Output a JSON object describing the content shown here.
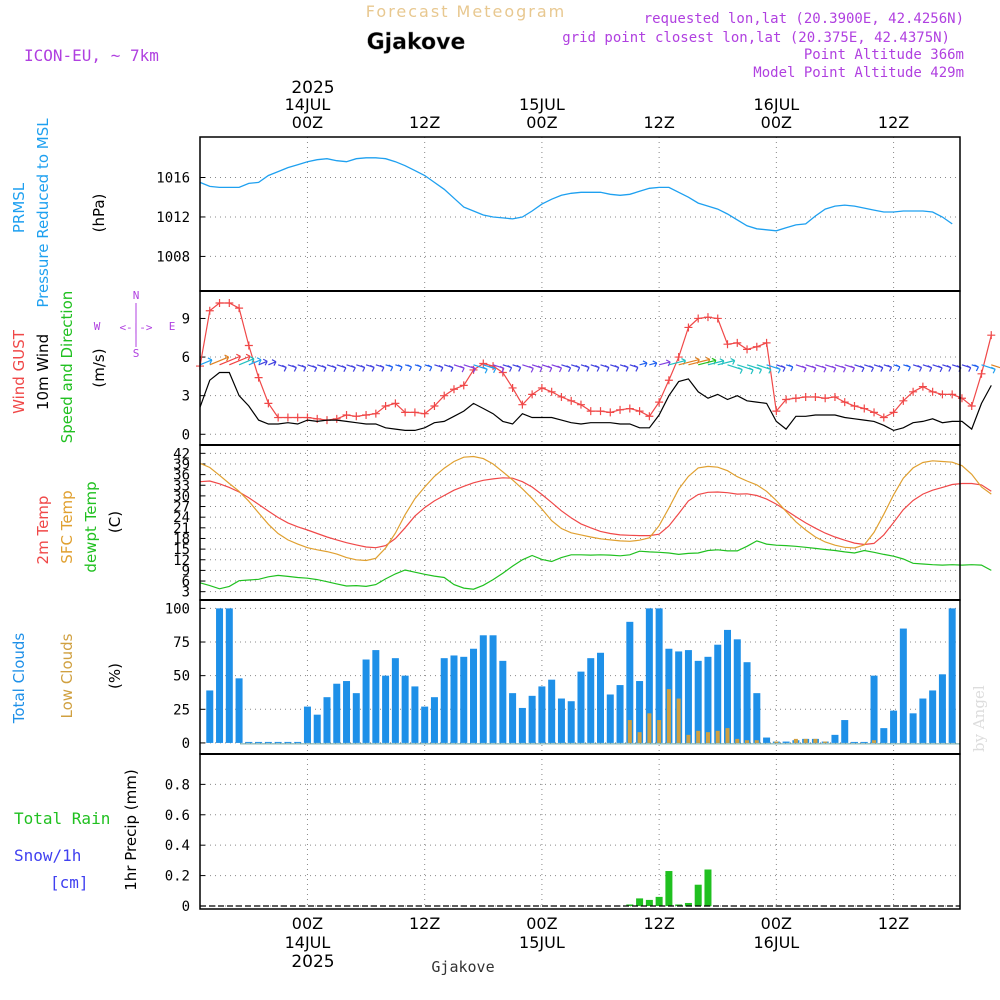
{
  "header": {
    "app_title": "Forecast Meteogram",
    "location": "Gjakove",
    "model": "ICON-EU, ~ 7km",
    "requested": "requested lon,lat (20.3900E, 42.4256N)",
    "grid_point": "grid point closest lon,lat (20.375E, 42.4375N)",
    "point_altitude": "Point Altitude 366m",
    "model_altitude": "Model Point Altitude 429m",
    "watermark": "by Angel",
    "footer_location": "Gjakove"
  },
  "time_axis": {
    "top_year": "2025",
    "bottom_year": "2025",
    "day_labels": [
      {
        "hour": 0,
        "day": "14JUL",
        "time": "00Z"
      },
      {
        "hour": 24,
        "day": "15JUL",
        "time": "00Z"
      },
      {
        "hour": 48,
        "day": "16JUL",
        "time": "00Z"
      }
    ],
    "noon_labels": [
      {
        "hour": 12,
        "time": "12Z"
      },
      {
        "hour": 36,
        "time": "12Z"
      },
      {
        "hour": 60,
        "time": "12Z"
      }
    ]
  },
  "colors": {
    "pressure": "#1ea0f0",
    "gust": "#f04848",
    "wind": "#000000",
    "t2m": "#f04848",
    "sfc": "#e0a030",
    "dew": "#20c020",
    "total_clouds": "#1e90e8",
    "low_clouds": "#d0a040",
    "rain": "#20c020",
    "snow": "#4040f0",
    "purple": "#b040e0",
    "title_gold": "#e8c890",
    "grid": "#888888"
  },
  "compass": {
    "n": "N",
    "s": "S",
    "w": "W",
    "e": "E",
    "arrows": "<-|->"
  },
  "chart_data": [
    {
      "type": "line",
      "panel": "pressure",
      "ylabel_lines": [
        "PRMSL",
        "Pressure Reduced to MSL"
      ],
      "unit": "(hPa)",
      "yticks": [
        1008,
        1012,
        1016
      ],
      "ylim": [
        1004.8,
        1019.8
      ],
      "grid": true,
      "x_start_hour": -11,
      "x_step_hours": 1,
      "series": [
        {
          "values": [
            1015.5,
            1015.1,
            1015.0,
            1015.0,
            1015.0,
            1015.4,
            1015.5,
            1016.2,
            1016.6,
            1017.0,
            1017.3,
            1017.6,
            1017.8,
            1017.9,
            1017.7,
            1017.6,
            1017.9,
            1018.0,
            1018.0,
            1017.9,
            1017.6,
            1017.2,
            1016.7,
            1016.2,
            1015.5,
            1014.8,
            1013.9,
            1013.0,
            1012.6,
            1012.2,
            1012.0,
            1011.9,
            1011.8,
            1012.0,
            1012.6,
            1013.3,
            1013.8,
            1014.2,
            1014.4,
            1014.5,
            1014.5,
            1014.5,
            1014.3,
            1014.2,
            1014.3,
            1014.6,
            1014.9,
            1015.0,
            1015.0,
            1014.5,
            1014.0,
            1013.4,
            1013.1,
            1012.8,
            1012.3,
            1011.7,
            1011.1,
            1010.8,
            1010.7,
            1010.6,
            1010.9,
            1011.2,
            1011.3,
            1012.1,
            1012.8,
            1013.1,
            1013.2,
            1013.1,
            1012.9,
            1012.7,
            1012.5,
            1012.5,
            1012.6,
            1012.6,
            1012.6,
            1012.5,
            1012.0,
            1011.3
          ]
        }
      ]
    },
    {
      "type": "line",
      "panel": "wind",
      "ylabel_lines": [
        "Wind GUST",
        "10m Wind",
        "Speed and Direction"
      ],
      "unit": "(m/s)",
      "yticks": [
        0,
        3,
        6,
        9
      ],
      "ylim": [
        -0.6,
        10.9
      ],
      "grid": true,
      "x_start_hour": -11,
      "x_step_hours": 1,
      "series": [
        {
          "name": "Wind GUST",
          "values": [
            5.3,
            9.6,
            10.2,
            10.2,
            9.8,
            6.9,
            4.4,
            2.4,
            1.3,
            1.3,
            1.3,
            1.3,
            1.2,
            1.1,
            1.2,
            1.5,
            1.4,
            1.5,
            1.6,
            2.2,
            2.4,
            1.7,
            1.7,
            1.6,
            2.2,
            3.0,
            3.5,
            3.8,
            5.0,
            5.5,
            5.3,
            4.8,
            3.6,
            2.3,
            3.1,
            3.6,
            3.3,
            2.9,
            2.6,
            2.3,
            1.8,
            1.8,
            1.7,
            1.9,
            2.0,
            1.8,
            1.4,
            2.5,
            4.2,
            6.0,
            8.3,
            9.0,
            9.1,
            9.0,
            7.0,
            7.1,
            6.6,
            6.8,
            7.1,
            1.8,
            2.7,
            2.8,
            2.9,
            2.9,
            2.8,
            2.9,
            2.5,
            2.2,
            2.0,
            1.7,
            1.3,
            1.7,
            2.6,
            3.3,
            3.7,
            3.3,
            3.1,
            3.1,
            2.8,
            2.2,
            4.7,
            7.7
          ]
        },
        {
          "name": "10m Wind",
          "values": [
            2.1,
            4.2,
            4.8,
            4.8,
            3.0,
            2.2,
            1.1,
            0.8,
            0.8,
            0.9,
            0.8,
            1.1,
            1.0,
            1.1,
            1.1,
            1.0,
            0.9,
            0.8,
            0.8,
            0.5,
            0.4,
            0.3,
            0.3,
            0.5,
            0.9,
            1.0,
            1.4,
            1.8,
            2.4,
            2.0,
            1.6,
            1.0,
            0.8,
            1.6,
            1.3,
            1.3,
            1.3,
            1.1,
            0.9,
            0.8,
            0.9,
            0.9,
            0.9,
            0.8,
            0.8,
            0.5,
            0.5,
            1.5,
            3.0,
            4.1,
            4.3,
            3.3,
            2.8,
            3.1,
            2.7,
            3.0,
            2.6,
            2.5,
            2.4,
            1.0,
            0.4,
            1.4,
            1.4,
            1.5,
            1.5,
            1.5,
            1.3,
            1.2,
            1.1,
            1.0,
            0.7,
            0.3,
            0.5,
            0.9,
            1.0,
            1.2,
            0.9,
            1.0,
            1.0,
            0.4,
            2.4,
            3.8
          ]
        }
      ]
    },
    {
      "type": "line",
      "panel": "temperature",
      "ylabel_lines": [
        "2m Temp",
        "SFC Temp",
        "dewpt Temp"
      ],
      "unit": "(C)",
      "yticks": [
        3,
        6,
        9,
        12,
        15,
        18,
        21,
        24,
        27,
        30,
        33,
        36,
        39,
        42
      ],
      "ylim": [
        1.5,
        43.5
      ],
      "grid": true,
      "x_start_hour": -11,
      "x_step_hours": 1,
      "series": [
        {
          "name": "2m Temp",
          "values": [
            34.0,
            34.2,
            33.4,
            32.4,
            31.1,
            29.5,
            27.6,
            25.7,
            23.9,
            22.4,
            21.3,
            20.4,
            19.4,
            18.4,
            17.6,
            16.8,
            16.2,
            15.6,
            15.4,
            16.0,
            18.0,
            21.0,
            24.3,
            26.7,
            28.6,
            30.1,
            31.6,
            32.7,
            33.7,
            34.4,
            34.8,
            35.1,
            35.0,
            34.0,
            32.5,
            30.4,
            28.1,
            25.8,
            23.8,
            22.1,
            21.0,
            20.0,
            19.4,
            19.0,
            18.9,
            18.8,
            18.8,
            19.2,
            21.5,
            25.0,
            28.6,
            30.4,
            31.0,
            31.1,
            30.9,
            30.5,
            30.6,
            30.1,
            29.1,
            27.7,
            25.9,
            24.1,
            22.4,
            20.9,
            19.5,
            18.4,
            17.5,
            16.7,
            16.3,
            16.6,
            19.0,
            22.5,
            26.1,
            28.7,
            30.5,
            31.6,
            32.4,
            33.2,
            33.5,
            33.5,
            33.1,
            31.3
          ]
        },
        {
          "name": "SFC Temp",
          "values": [
            39.2,
            38.0,
            35.8,
            33.5,
            31.3,
            28.5,
            25.2,
            22.0,
            19.4,
            17.6,
            16.4,
            15.4,
            14.8,
            14.3,
            13.6,
            12.6,
            12.0,
            11.8,
            12.4,
            15.3,
            19.5,
            24.7,
            29.2,
            32.5,
            35.5,
            37.8,
            39.7,
            40.9,
            41.1,
            40.5,
            39.0,
            36.8,
            34.5,
            32.0,
            29.3,
            26.3,
            23.0,
            20.8,
            19.6,
            19.0,
            18.4,
            17.9,
            17.6,
            17.3,
            17.2,
            17.5,
            18.2,
            21.6,
            26.6,
            31.9,
            35.5,
            37.9,
            38.3,
            38.1,
            37.1,
            35.4,
            34.2,
            33.1,
            31.3,
            28.7,
            25.6,
            22.7,
            20.4,
            18.4,
            17.0,
            16.1,
            15.5,
            15.3,
            16.2,
            19.7,
            24.8,
            30.3,
            35.0,
            37.9,
            39.4,
            39.9,
            39.7,
            39.5,
            38.5,
            36.1,
            32.5,
            30.5
          ]
        },
        {
          "name": "dewpt Temp",
          "values": [
            5.5,
            4.7,
            3.8,
            4.5,
            6.1,
            6.3,
            6.5,
            7.2,
            7.6,
            7.3,
            7.0,
            6.8,
            6.4,
            5.8,
            5.2,
            4.6,
            4.7,
            4.5,
            5.0,
            6.6,
            8.0,
            9.1,
            8.5,
            7.9,
            7.4,
            7.0,
            5.0,
            4.0,
            3.7,
            4.8,
            6.4,
            8.2,
            10.2,
            12.0,
            13.2,
            12.1,
            11.5,
            12.6,
            13.4,
            13.4,
            13.3,
            13.4,
            13.3,
            13.1,
            13.4,
            14.4,
            14.2,
            14.1,
            13.9,
            13.5,
            13.8,
            13.9,
            14.6,
            14.8,
            14.5,
            14.5,
            15.8,
            17.3,
            16.4,
            16.1,
            16.0,
            15.8,
            15.5,
            15.2,
            14.9,
            14.6,
            14.2,
            13.9,
            14.6,
            14.1,
            13.5,
            13.0,
            12.2,
            11.0,
            10.8,
            10.6,
            10.5,
            10.6,
            10.5,
            10.6,
            10.5,
            9.0
          ]
        }
      ]
    },
    {
      "type": "bar",
      "panel": "clouds",
      "ylabel_lines": [
        "Total Clouds",
        "Low Clouds"
      ],
      "unit": "(%)",
      "yticks": [
        0,
        25,
        50,
        75,
        100
      ],
      "ylim": [
        -6,
        104
      ],
      "grid": true,
      "x_start_hour": -10,
      "x_step_hours": 1,
      "series": [
        {
          "name": "Total Clouds",
          "values": [
            39,
            100,
            100,
            48,
            0,
            0,
            0,
            0,
            0,
            0,
            27,
            21,
            34,
            44,
            46,
            37,
            62,
            69,
            50,
            63,
            50,
            42,
            27,
            34,
            63,
            65,
            64,
            70,
            80,
            80,
            61,
            37,
            26,
            35,
            42,
            47,
            33,
            31,
            53,
            63,
            67,
            36,
            43,
            90,
            46,
            100,
            100,
            70,
            68,
            69,
            61,
            64,
            73,
            84,
            77,
            60,
            37,
            4,
            1,
            1,
            2,
            3,
            3,
            1,
            6,
            17,
            0,
            0,
            50,
            11,
            24,
            85,
            22,
            33,
            39,
            51,
            100
          ]
        },
        {
          "name": "Low Clouds",
          "values": [
            0,
            0,
            0,
            0,
            0,
            0,
            0,
            0,
            0,
            0,
            0,
            0,
            0,
            0,
            0,
            0,
            0,
            0,
            0,
            0,
            0,
            0,
            0,
            0,
            0,
            0,
            0,
            0,
            0,
            0,
            0,
            0,
            0,
            0,
            0,
            0,
            0,
            0,
            0,
            0,
            0,
            0,
            0,
            17,
            8,
            22,
            17,
            40,
            33,
            6,
            9,
            8,
            9,
            11,
            3,
            2,
            2,
            0,
            1,
            0,
            3,
            3,
            3,
            1,
            0,
            0,
            0,
            0,
            2,
            0,
            0,
            0,
            0,
            0,
            0,
            0,
            0
          ]
        }
      ]
    },
    {
      "type": "bar",
      "panel": "precipitation",
      "ylabel_lines": [
        "1hr Precip (mm)"
      ],
      "legend_lines": [
        "Total  Rain",
        "Snow/1h",
        "[cm]"
      ],
      "yticks": [
        0,
        0.2,
        0.4,
        0.6,
        0.8
      ],
      "ytick_labels": [
        "0",
        "0.2",
        "0.4",
        "0.6",
        "0.8"
      ],
      "ylim": [
        0,
        0.98
      ],
      "grid": true,
      "x_start_hour": 33,
      "x_step_hours": 1,
      "series": [
        {
          "name": "Total Rain",
          "values": [
            0.01,
            0.05,
            0.04,
            0.06,
            0.23,
            0.01,
            0.02,
            0.14,
            0.24,
            0
          ]
        }
      ]
    }
  ]
}
